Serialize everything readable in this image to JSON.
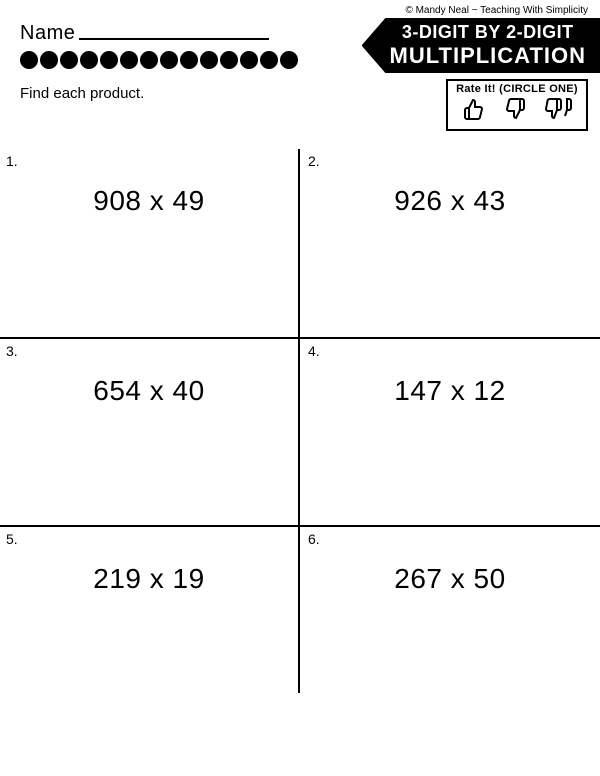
{
  "copyright": "© Mandy Neal ~ Teaching With Simplicity",
  "name_label": "Name",
  "banner": {
    "line1": "3-DIGIT BY 2-DIGIT",
    "line2": "MULTIPLICATION"
  },
  "dot_count": 14,
  "instructions": "Find each product.",
  "rate_box": {
    "title": "Rate It! (CIRCLE ONE)",
    "thumbs": [
      "👍",
      "👎",
      "👎"
    ]
  },
  "problems": [
    {
      "num": "1.",
      "expr": "908 x 49"
    },
    {
      "num": "2.",
      "expr": "926 x 43"
    },
    {
      "num": "3.",
      "expr": "654 x 40"
    },
    {
      "num": "4.",
      "expr": "147 x 12"
    },
    {
      "num": "5.",
      "expr": "219 x 19"
    },
    {
      "num": "6.",
      "expr": "267 x 50"
    }
  ],
  "colors": {
    "black": "#000000",
    "white": "#ffffff"
  }
}
